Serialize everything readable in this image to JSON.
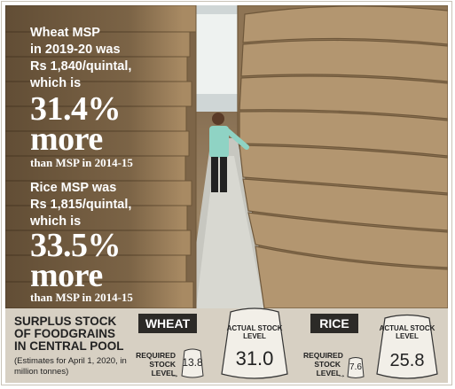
{
  "headline": {
    "wheat_line1": "Wheat MSP",
    "wheat_line2": "in 2019-20 was",
    "wheat_line3": "Rs 1,840/quintal,",
    "wheat_line4": "which is",
    "wheat_pct": "31.4%",
    "wheat_more": "more",
    "wheat_tail": "than MSP in 2014-15",
    "rice_line1": "Rice MSP was",
    "rice_line2": "Rs 1,815/quintal,",
    "rice_line3": "which is",
    "rice_pct": "33.5%",
    "rice_more": "more",
    "rice_tail": "than MSP in 2014-15"
  },
  "stock": {
    "title": "SURPLUS STOCK OF FOODGRAINS IN CENTRAL POOL",
    "note": "(Estimates for April 1, 2020, in million tonnes)",
    "wheat": {
      "label": "WHEAT",
      "required_caption": "REQUIRED STOCK LEVEL",
      "required_value": "13.8",
      "actual_caption": "ACTUAL STOCK LEVEL",
      "actual_value": "31.0"
    },
    "rice": {
      "label": "RICE",
      "required_caption": "REQUIRED STOCK LEVEL",
      "required_value": "7.6",
      "actual_caption": "ACTUAL STOCK LEVEL",
      "actual_value": "25.8"
    }
  },
  "colors": {
    "label_bg": "#2c2a27",
    "strip_bg": "#d7d0c3",
    "sack_fill": "#f2efe8"
  }
}
